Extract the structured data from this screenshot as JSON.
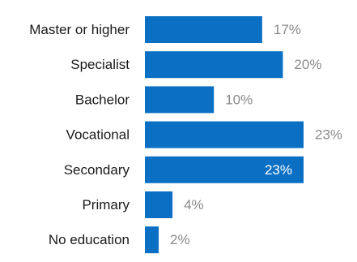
{
  "chart_data": {
    "type": "bar",
    "orientation": "horizontal",
    "categories": [
      "Master or higher",
      "Specialist",
      "Bachelor",
      "Vocational",
      "Secondary",
      "Primary",
      "No education"
    ],
    "values": [
      17,
      20,
      10,
      23,
      23,
      4,
      2
    ],
    "value_labels": [
      "17%",
      "20%",
      "10%",
      "23%",
      "23%",
      "4%",
      "2%"
    ],
    "unit": "%",
    "xlim": [
      0,
      23
    ],
    "grid": false,
    "legend": "none",
    "colors": {
      "bar": "#0b6fc4",
      "label_outside": "#8a8a8a",
      "label_inside": "#ffffff"
    }
  }
}
